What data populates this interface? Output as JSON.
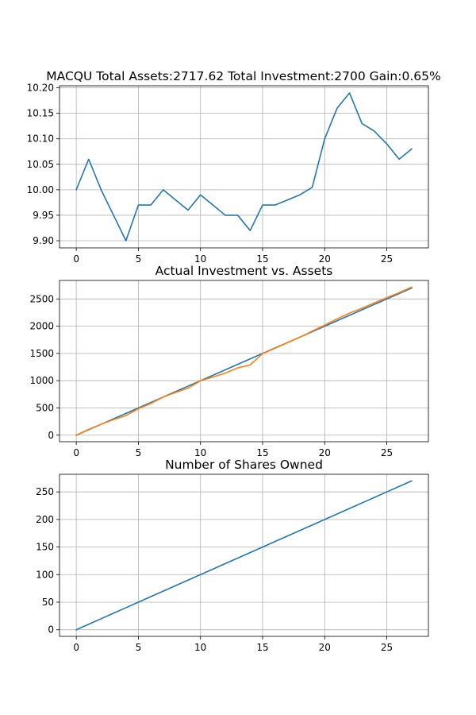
{
  "chart_data": [
    {
      "type": "line",
      "title": "MACQU Total Assets:2717.62  Total Investment:2700  Gain:0.65%",
      "xlabel": "",
      "ylabel": "",
      "xlim": [
        -1.35,
        28.35
      ],
      "ylim": [
        9.886,
        10.204
      ],
      "xticks": [
        0,
        5,
        10,
        15,
        20,
        25
      ],
      "xtick_labels": [
        "0",
        "5",
        "10",
        "15",
        "20",
        "25"
      ],
      "yticks": [
        9.9,
        9.95,
        10.0,
        10.05,
        10.1,
        10.15,
        10.2
      ],
      "ytick_labels": [
        "9.90",
        "9.95",
        "10.00",
        "10.05",
        "10.10",
        "10.15",
        "10.20"
      ],
      "grid": true,
      "series": [
        {
          "color": "#1f77b4",
          "x": [
            0,
            1,
            2,
            3,
            4,
            5,
            6,
            7,
            8,
            9,
            10,
            11,
            12,
            13,
            14,
            15,
            16,
            17,
            18,
            19,
            20,
            21,
            22,
            23,
            24,
            25,
            26,
            27
          ],
          "y": [
            10.0,
            10.06,
            10.0,
            9.95,
            9.9,
            9.97,
            9.97,
            10.0,
            9.98,
            9.96,
            9.99,
            9.97,
            9.95,
            9.95,
            9.92,
            9.97,
            9.97,
            9.98,
            9.99,
            10.005,
            10.1,
            10.16,
            10.19,
            10.13,
            10.115,
            10.09,
            10.06,
            10.08
          ]
        }
      ]
    },
    {
      "type": "line",
      "title": "Actual Investment vs. Assets",
      "xlabel": "",
      "ylabel": "",
      "xlim": [
        -1.35,
        28.35
      ],
      "ylim": [
        -120,
        2840
      ],
      "xticks": [
        0,
        5,
        10,
        15,
        20,
        25
      ],
      "xtick_labels": [
        "0",
        "5",
        "10",
        "15",
        "20",
        "25"
      ],
      "yticks": [
        0,
        500,
        1000,
        1500,
        2000,
        2500
      ],
      "ytick_labels": [
        "0",
        "500",
        "1000",
        "1500",
        "2000",
        "2500"
      ],
      "grid": true,
      "series": [
        {
          "color": "#1f77b4",
          "x": [
            0,
            1,
            2,
            3,
            4,
            5,
            6,
            7,
            8,
            9,
            10,
            11,
            12,
            13,
            14,
            15,
            16,
            17,
            18,
            19,
            20,
            21,
            22,
            23,
            24,
            25,
            26,
            27
          ],
          "y": [
            0,
            100,
            200,
            300,
            400,
            500,
            600,
            700,
            800,
            900,
            1000,
            1100,
            1200,
            1300,
            1400,
            1500,
            1600,
            1700,
            1800,
            1900,
            2000,
            2100,
            2200,
            2300,
            2400,
            2500,
            2600,
            2700
          ]
        },
        {
          "color": "#ff7f0e",
          "x": [
            0,
            1,
            2,
            3,
            4,
            5,
            6,
            7,
            8,
            9,
            10,
            11,
            12,
            13,
            14,
            15,
            16,
            17,
            18,
            19,
            20,
            21,
            22,
            23,
            24,
            25,
            26,
            27
          ],
          "y": [
            0,
            106,
            200,
            285,
            360,
            485,
            582,
            700,
            784,
            864,
            999,
            1067,
            1140,
            1235,
            1289,
            1496,
            1595,
            1697,
            1798,
            1910,
            2020,
            2134,
            2240,
            2329,
            2428,
            2523,
            2616,
            2717.62
          ]
        }
      ]
    },
    {
      "type": "line",
      "title": "Number of Shares Owned",
      "xlabel": "",
      "ylabel": "",
      "xlim": [
        -1.35,
        28.35
      ],
      "ylim": [
        -12,
        282
      ],
      "xticks": [
        0,
        5,
        10,
        15,
        20,
        25
      ],
      "xtick_labels": [
        "0",
        "5",
        "10",
        "15",
        "20",
        "25"
      ],
      "yticks": [
        0,
        50,
        100,
        150,
        200,
        250
      ],
      "ytick_labels": [
        "0",
        "50",
        "100",
        "150",
        "200",
        "250"
      ],
      "grid": true,
      "series": [
        {
          "color": "#1f77b4",
          "x": [
            0,
            1,
            2,
            3,
            4,
            5,
            6,
            7,
            8,
            9,
            10,
            11,
            12,
            13,
            14,
            15,
            16,
            17,
            18,
            19,
            20,
            21,
            22,
            23,
            24,
            25,
            26,
            27
          ],
          "y": [
            0,
            10,
            20,
            30,
            40,
            50,
            60,
            70,
            80,
            90,
            100,
            110,
            120,
            130,
            140,
            150,
            160,
            170,
            180,
            190,
            200,
            210,
            220,
            230,
            240,
            250,
            260,
            270
          ]
        }
      ]
    }
  ]
}
